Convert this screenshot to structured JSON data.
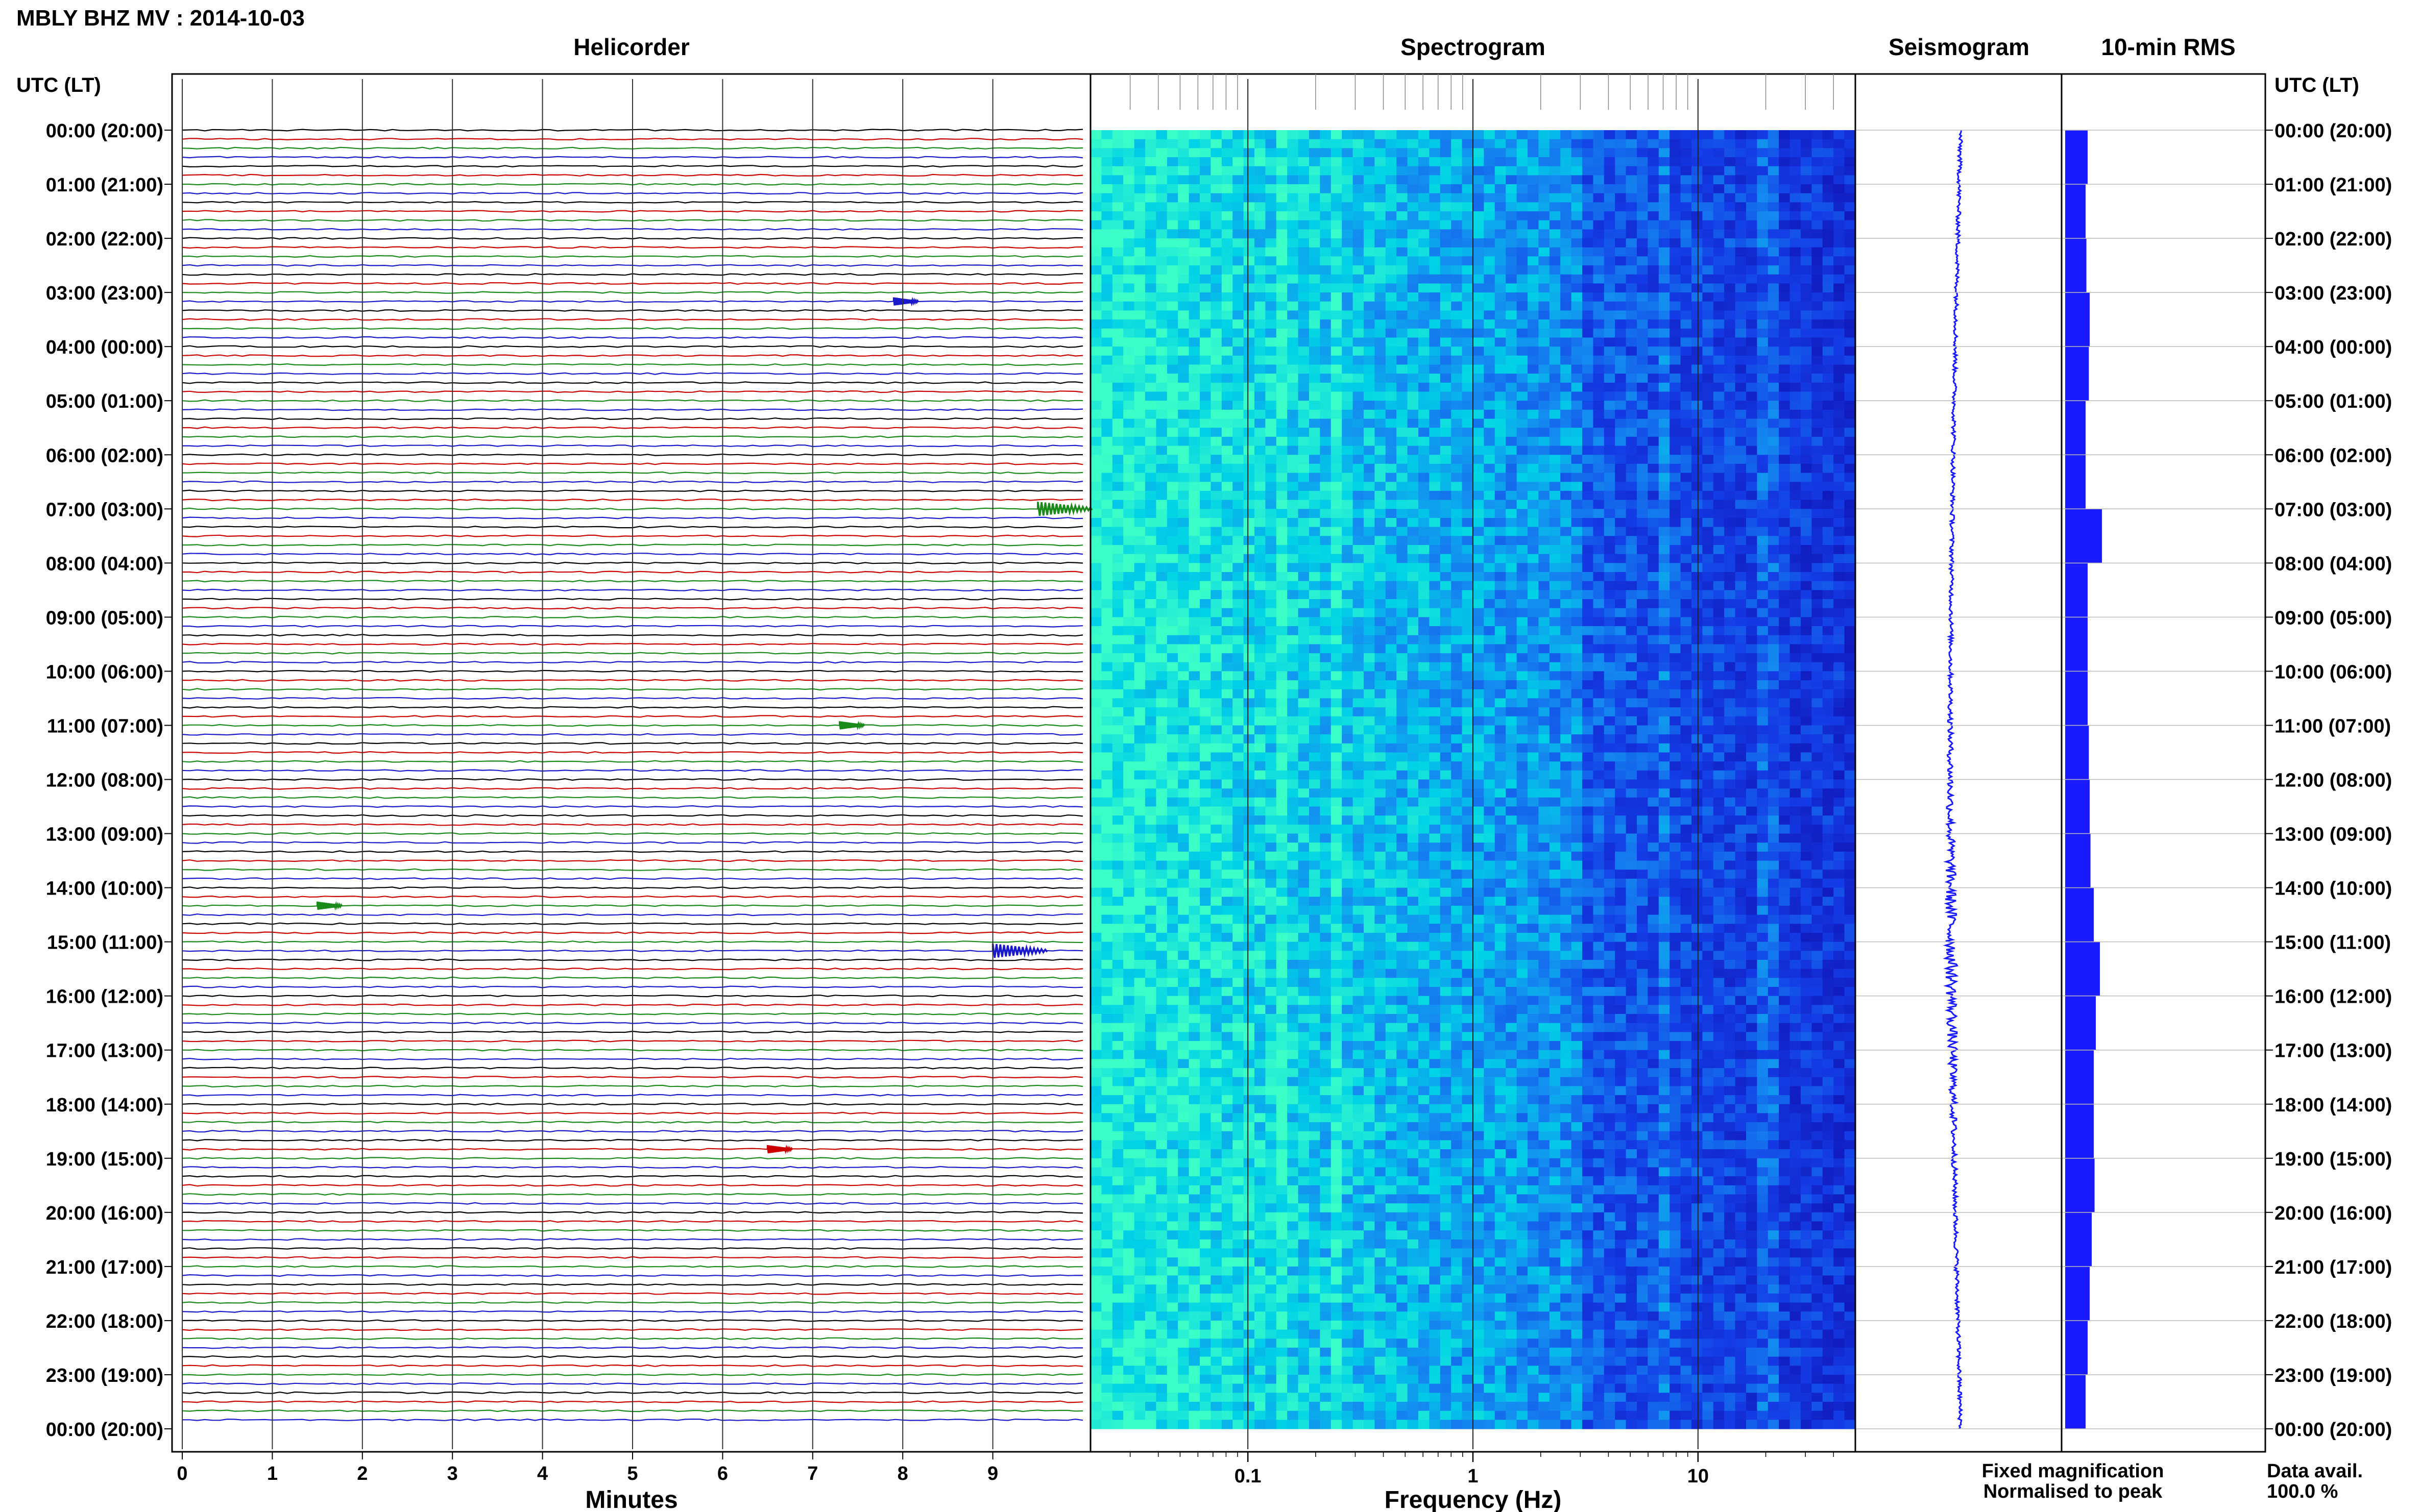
{
  "title": "MBLY BHZ MV : 2014-10-03",
  "panels": {
    "helicorder": "Helicorder",
    "spectrogram": "Spectrogram",
    "seismogram": "Seismogram",
    "rms": "10-min RMS"
  },
  "left_axis_label": "UTC (LT)",
  "right_axis_label": "UTC (LT)",
  "time_ticks": [
    "00:00 (20:00)",
    "01:00 (21:00)",
    "02:00 (22:00)",
    "03:00 (23:00)",
    "04:00 (00:00)",
    "05:00 (01:00)",
    "06:00 (02:00)",
    "07:00 (03:00)",
    "08:00 (04:00)",
    "09:00 (05:00)",
    "10:00 (06:00)",
    "11:00 (07:00)",
    "12:00 (08:00)",
    "13:00 (09:00)",
    "14:00 (10:00)",
    "15:00 (11:00)",
    "16:00 (12:00)",
    "17:00 (13:00)",
    "18:00 (14:00)",
    "19:00 (15:00)",
    "20:00 (16:00)",
    "21:00 (17:00)",
    "22:00 (18:00)",
    "23:00 (19:00)",
    "00:00 (20:00)"
  ],
  "helicorder_xlabel": "Minutes",
  "helicorder_xticks": [
    "0",
    "1",
    "2",
    "3",
    "4",
    "5",
    "6",
    "7",
    "8",
    "9"
  ],
  "spectrogram_xlabel": "Frequency (Hz)",
  "spectrogram_xticks": [
    "0.1",
    "1",
    "10"
  ],
  "legend": {
    "fixed": "Fixed magnification",
    "normalised": "Normalised to peak",
    "fixed_color": "#1a1aff",
    "normalised_color": "#ff2020"
  },
  "data_avail_label": "Data avail.",
  "data_avail_value": "100.0 %",
  "colors": {
    "trace_cycle": [
      "#000000",
      "#cc0000",
      "#1a8a1a",
      "#1a1acc"
    ],
    "spectro_low": "#00ffcc",
    "spectro_high": "#1010b0",
    "seismogram": "#1a1aff",
    "rms": "#1a1aff",
    "grid": "#bbbbbb"
  },
  "chart_data": {
    "type": "heatmap",
    "title": "MBLY BHZ MV : 2014-10-03",
    "helicorder": {
      "lines_per_hour": 6,
      "minutes_per_line": 10,
      "hours": 24,
      "xlabel": "Minutes",
      "xlim": [
        0,
        10
      ],
      "events": [
        {
          "hour": 7.0,
          "minute": 9.5,
          "amplitude": "large"
        },
        {
          "hour": 15.1,
          "minute": 9.0,
          "amplitude": "large"
        },
        {
          "hour": 3.2,
          "minute": 7.9,
          "amplitude": "medium"
        },
        {
          "hour": 14.3,
          "minute": 1.5,
          "amplitude": "medium"
        },
        {
          "hour": 18.9,
          "minute": 6.5,
          "amplitude": "medium"
        },
        {
          "hour": 11.0,
          "minute": 7.3,
          "amplitude": "medium"
        }
      ]
    },
    "spectrogram": {
      "xlabel": "Frequency (Hz)",
      "xscale": "log",
      "xlim": [
        0.02,
        50
      ],
      "peak_bands_hz": [
        0.14,
        0.25,
        7.0,
        20.0
      ]
    },
    "rms_10min": {
      "hours": [
        0,
        1,
        2,
        3,
        4,
        5,
        6,
        7,
        8,
        9,
        10,
        11,
        12,
        13,
        14,
        15,
        16,
        17,
        18,
        19,
        20,
        21,
        22,
        23
      ],
      "relative_values": [
        0.55,
        0.5,
        0.52,
        0.6,
        0.58,
        0.5,
        0.5,
        0.9,
        0.55,
        0.55,
        0.55,
        0.58,
        0.6,
        0.62,
        0.7,
        0.85,
        0.75,
        0.7,
        0.7,
        0.72,
        0.65,
        0.6,
        0.55,
        0.5
      ]
    }
  }
}
